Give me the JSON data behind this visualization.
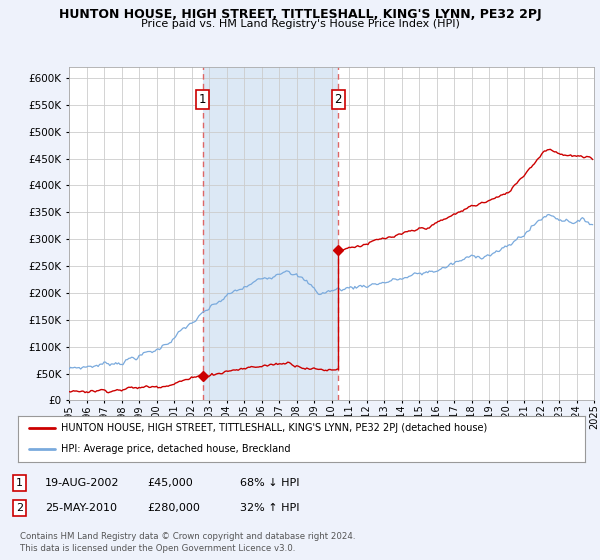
{
  "title": "HUNTON HOUSE, HIGH STREET, TITTLESHALL, KING'S LYNN, PE32 2PJ",
  "subtitle": "Price paid vs. HM Land Registry's House Price Index (HPI)",
  "ylim": [
    0,
    620000
  ],
  "yticks": [
    0,
    50000,
    100000,
    150000,
    200000,
    250000,
    300000,
    350000,
    400000,
    450000,
    500000,
    550000,
    600000
  ],
  "background_color": "#eef2fb",
  "plot_bg_color": "#ffffff",
  "highlight_color": "#dce8f5",
  "grid_color": "#cccccc",
  "hpi_color": "#7aaadd",
  "price_color": "#cc0000",
  "marker_color": "#cc0000",
  "sale1_date": 2002.63,
  "sale1_price": 45000,
  "sale1_label": "1",
  "sale2_date": 2010.39,
  "sale2_price": 280000,
  "sale2_label": "2",
  "dashed_line_color": "#dd6666",
  "legend_house": "HUNTON HOUSE, HIGH STREET, TITTLESHALL, KING'S LYNN, PE32 2PJ (detached house)",
  "legend_hpi": "HPI: Average price, detached house, Breckland",
  "table_row1": [
    "1",
    "19-AUG-2002",
    "£45,000",
    "68% ↓ HPI"
  ],
  "table_row2": [
    "2",
    "25-MAY-2010",
    "£280,000",
    "32% ↑ HPI"
  ],
  "footnote": "Contains HM Land Registry data © Crown copyright and database right 2024.\nThis data is licensed under the Open Government Licence v3.0.",
  "xmin": 1995.0,
  "xmax": 2025.0
}
